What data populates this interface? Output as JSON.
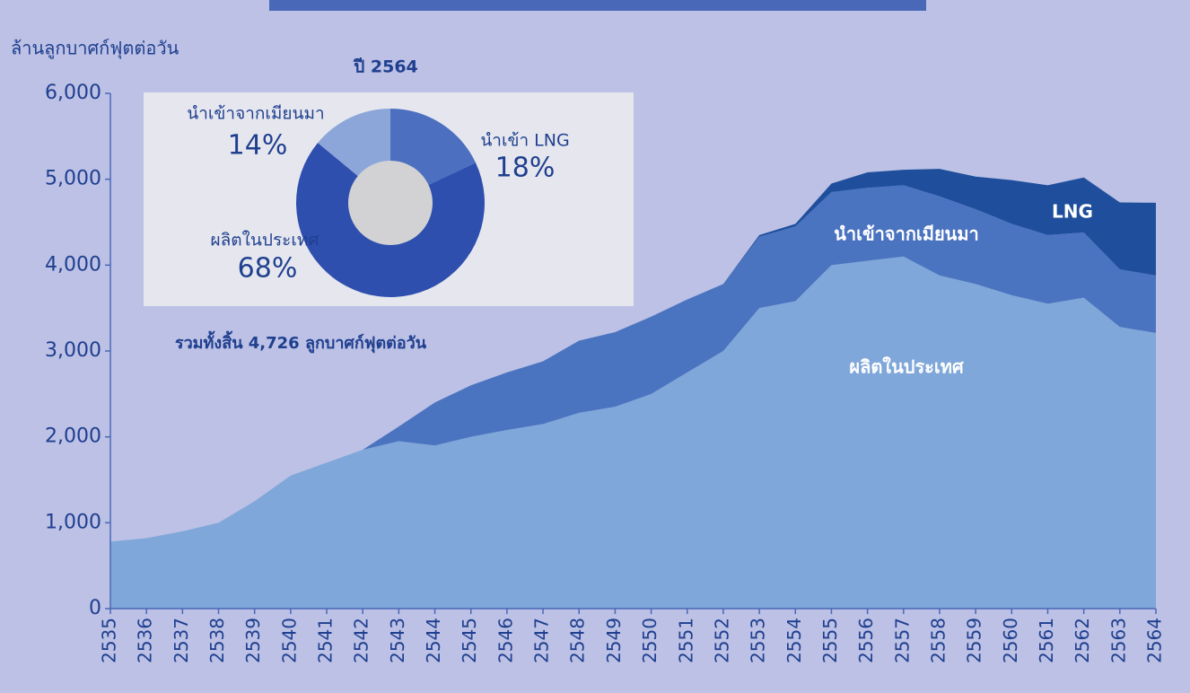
{
  "chart_data": [
    {
      "type": "stacked_area",
      "y_label": "ล้านลูกบาศก์ฟุตต่อวัน",
      "annotation": "รวมทั้งสิ้น 4,726 ลูกบาศก์ฟุตต่อวัน",
      "categories": [
        "2535",
        "2536",
        "2537",
        "2538",
        "2539",
        "2540",
        "2541",
        "2542",
        "2543",
        "2544",
        "2545",
        "2546",
        "2547",
        "2548",
        "2549",
        "2550",
        "2551",
        "2552",
        "2553",
        "2554",
        "2555",
        "2556",
        "2557",
        "2558",
        "2559",
        "2560",
        "2561",
        "2562",
        "2563",
        "2564"
      ],
      "series": [
        {
          "name": "ผลิตในประเทศ",
          "color": "#80a7d9",
          "values": [
            780,
            820,
            900,
            1000,
            1250,
            1550,
            1700,
            1850,
            1950,
            1900,
            2000,
            2080,
            2150,
            2280,
            2350,
            2500,
            2750,
            3000,
            3500,
            3580,
            4000,
            4050,
            4100,
            3880,
            3780,
            3650,
            3550,
            3620,
            3280,
            3210
          ]
        },
        {
          "name": "นำเข้าจากเมียนมา",
          "color": "#4b74c0",
          "values": [
            0,
            0,
            0,
            0,
            0,
            0,
            0,
            0,
            170,
            500,
            600,
            670,
            730,
            840,
            870,
            900,
            850,
            780,
            830,
            870,
            850,
            850,
            830,
            920,
            870,
            830,
            800,
            760,
            670,
            670
          ]
        },
        {
          "name": "LNG",
          "color": "#1f4f9c",
          "values": [
            0,
            0,
            0,
            0,
            0,
            0,
            0,
            0,
            0,
            0,
            0,
            0,
            0,
            0,
            0,
            0,
            0,
            0,
            20,
            30,
            100,
            180,
            180,
            320,
            380,
            510,
            580,
            640,
            780,
            846
          ]
        }
      ],
      "ylim": [
        0,
        6000
      ],
      "yticks": [
        0,
        {
          "value": 1000,
          "label": "1,000"
        },
        {
          "value": 2000,
          "label": "2,000"
        },
        {
          "value": 3000,
          "label": "3,000"
        },
        {
          "value": 4000,
          "label": "4,000"
        },
        {
          "value": 5000,
          "label": "5,000"
        },
        {
          "value": 6000,
          "label": "6,000"
        }
      ]
    },
    {
      "type": "donut",
      "title": "ปี 2564",
      "categories": [
        "นำเข้า LNG",
        "ผลิตในประเทศ",
        "นำเข้าจากเมียนมา"
      ],
      "values": [
        18,
        68,
        14
      ],
      "value_labels": [
        "18%",
        "68%",
        "14%"
      ],
      "colors": [
        "#4c6fbf",
        "#2e4fae",
        "#8ca6d9"
      ]
    }
  ]
}
